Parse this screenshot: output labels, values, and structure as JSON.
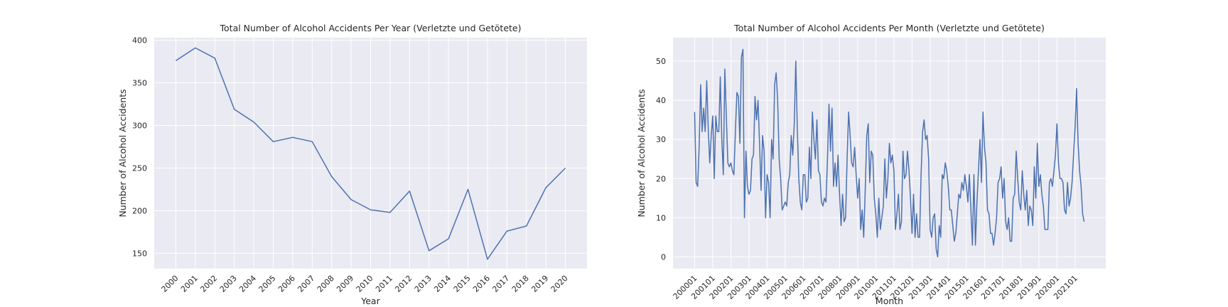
{
  "chart_data": [
    {
      "type": "line",
      "title": "Total Number of Alcohol Accidents Per Year (Verletzte und Getötete)",
      "xlabel": "Year",
      "ylabel": "Number of Alcohol Accidents",
      "categories": [
        "2000",
        "2001",
        "2002",
        "2003",
        "2004",
        "2005",
        "2006",
        "2007",
        "2008",
        "2009",
        "2010",
        "2011",
        "2012",
        "2013",
        "2014",
        "2015",
        "2016",
        "2017",
        "2018",
        "2019",
        "2020"
      ],
      "series": [
        {
          "values": [
            376,
            391,
            379,
            319,
            304,
            281,
            286,
            281,
            240,
            213,
            201,
            198,
            223,
            153,
            167,
            225,
            143,
            176,
            182,
            227,
            250
          ]
        }
      ],
      "ylim": [
        132,
        403
      ],
      "yticks": [
        150,
        200,
        250,
        300,
        350,
        400
      ],
      "grid": true,
      "color": "#4c72b0"
    },
    {
      "type": "line",
      "title": "Total Number of Alcohol Accidents Per Month (Verletzte und Getötete)",
      "xlabel": "Month",
      "ylabel": "Number of Alcohol Accidents",
      "xticks": [
        "200001",
        "200101",
        "200201",
        "200301",
        "200401",
        "200501",
        "200601",
        "200701",
        "200801",
        "200901",
        "201001",
        "201101",
        "201201",
        "201301",
        "201401",
        "201501",
        "201601",
        "201701",
        "201801",
        "201901",
        "202001",
        "202101"
      ],
      "series": [
        {
          "values": [
            37,
            19,
            18,
            28,
            44,
            32,
            38,
            32,
            45,
            33,
            24,
            31,
            36,
            20,
            36,
            32,
            32,
            46,
            30,
            21,
            48,
            36,
            24,
            23,
            24,
            22,
            21,
            32,
            42,
            41,
            29,
            51,
            53,
            10,
            27,
            18,
            16,
            17,
            25,
            26,
            41,
            35,
            40,
            29,
            17,
            31,
            27,
            10,
            21,
            19,
            10,
            30,
            25,
            44,
            47,
            40,
            25,
            20,
            12,
            13,
            14,
            13,
            19,
            21,
            31,
            26,
            34,
            50,
            33,
            20,
            14,
            12,
            21,
            21,
            14,
            15,
            28,
            20,
            37,
            30,
            25,
            35,
            22,
            21,
            14,
            13,
            15,
            14,
            25,
            39,
            27,
            38,
            18,
            24,
            18,
            26,
            16,
            8,
            16,
            9,
            10,
            25,
            37,
            31,
            24,
            23,
            28,
            21,
            15,
            20,
            7,
            12,
            5,
            17,
            31,
            34,
            19,
            27,
            26,
            15,
            11,
            5,
            15,
            7,
            10,
            13,
            25,
            15,
            20,
            29,
            24,
            26,
            22,
            7,
            11,
            16,
            7,
            9,
            27,
            20,
            21,
            27,
            22,
            15,
            6,
            16,
            5,
            11,
            5,
            5,
            21,
            32,
            35,
            30,
            31,
            25,
            7,
            5,
            10,
            11,
            2,
            0,
            8,
            5,
            21,
            20,
            24,
            22,
            18,
            12,
            12,
            8,
            4,
            6,
            11,
            16,
            15,
            19,
            17,
            21,
            18,
            14,
            21,
            12,
            3,
            21,
            3,
            14,
            22,
            30,
            19,
            37,
            28,
            24,
            12,
            11,
            6,
            6,
            3,
            6,
            10,
            19,
            20,
            23,
            15,
            20,
            9,
            7,
            10,
            4,
            4,
            15,
            16,
            27,
            20,
            14,
            12,
            22,
            16,
            12,
            17,
            8,
            13,
            12,
            8,
            23,
            15,
            29,
            18,
            21,
            16,
            13,
            7,
            7,
            7,
            19,
            20,
            18,
            22,
            26,
            34,
            24,
            20,
            20,
            19,
            12,
            11,
            19,
            13,
            15,
            19,
            26,
            33,
            43,
            29,
            22,
            18,
            11,
            9
          ]
        }
      ],
      "ylim": [
        -3,
        56
      ],
      "yticks": [
        0,
        10,
        20,
        30,
        40,
        50
      ],
      "grid": true,
      "color": "#4c72b0"
    }
  ]
}
